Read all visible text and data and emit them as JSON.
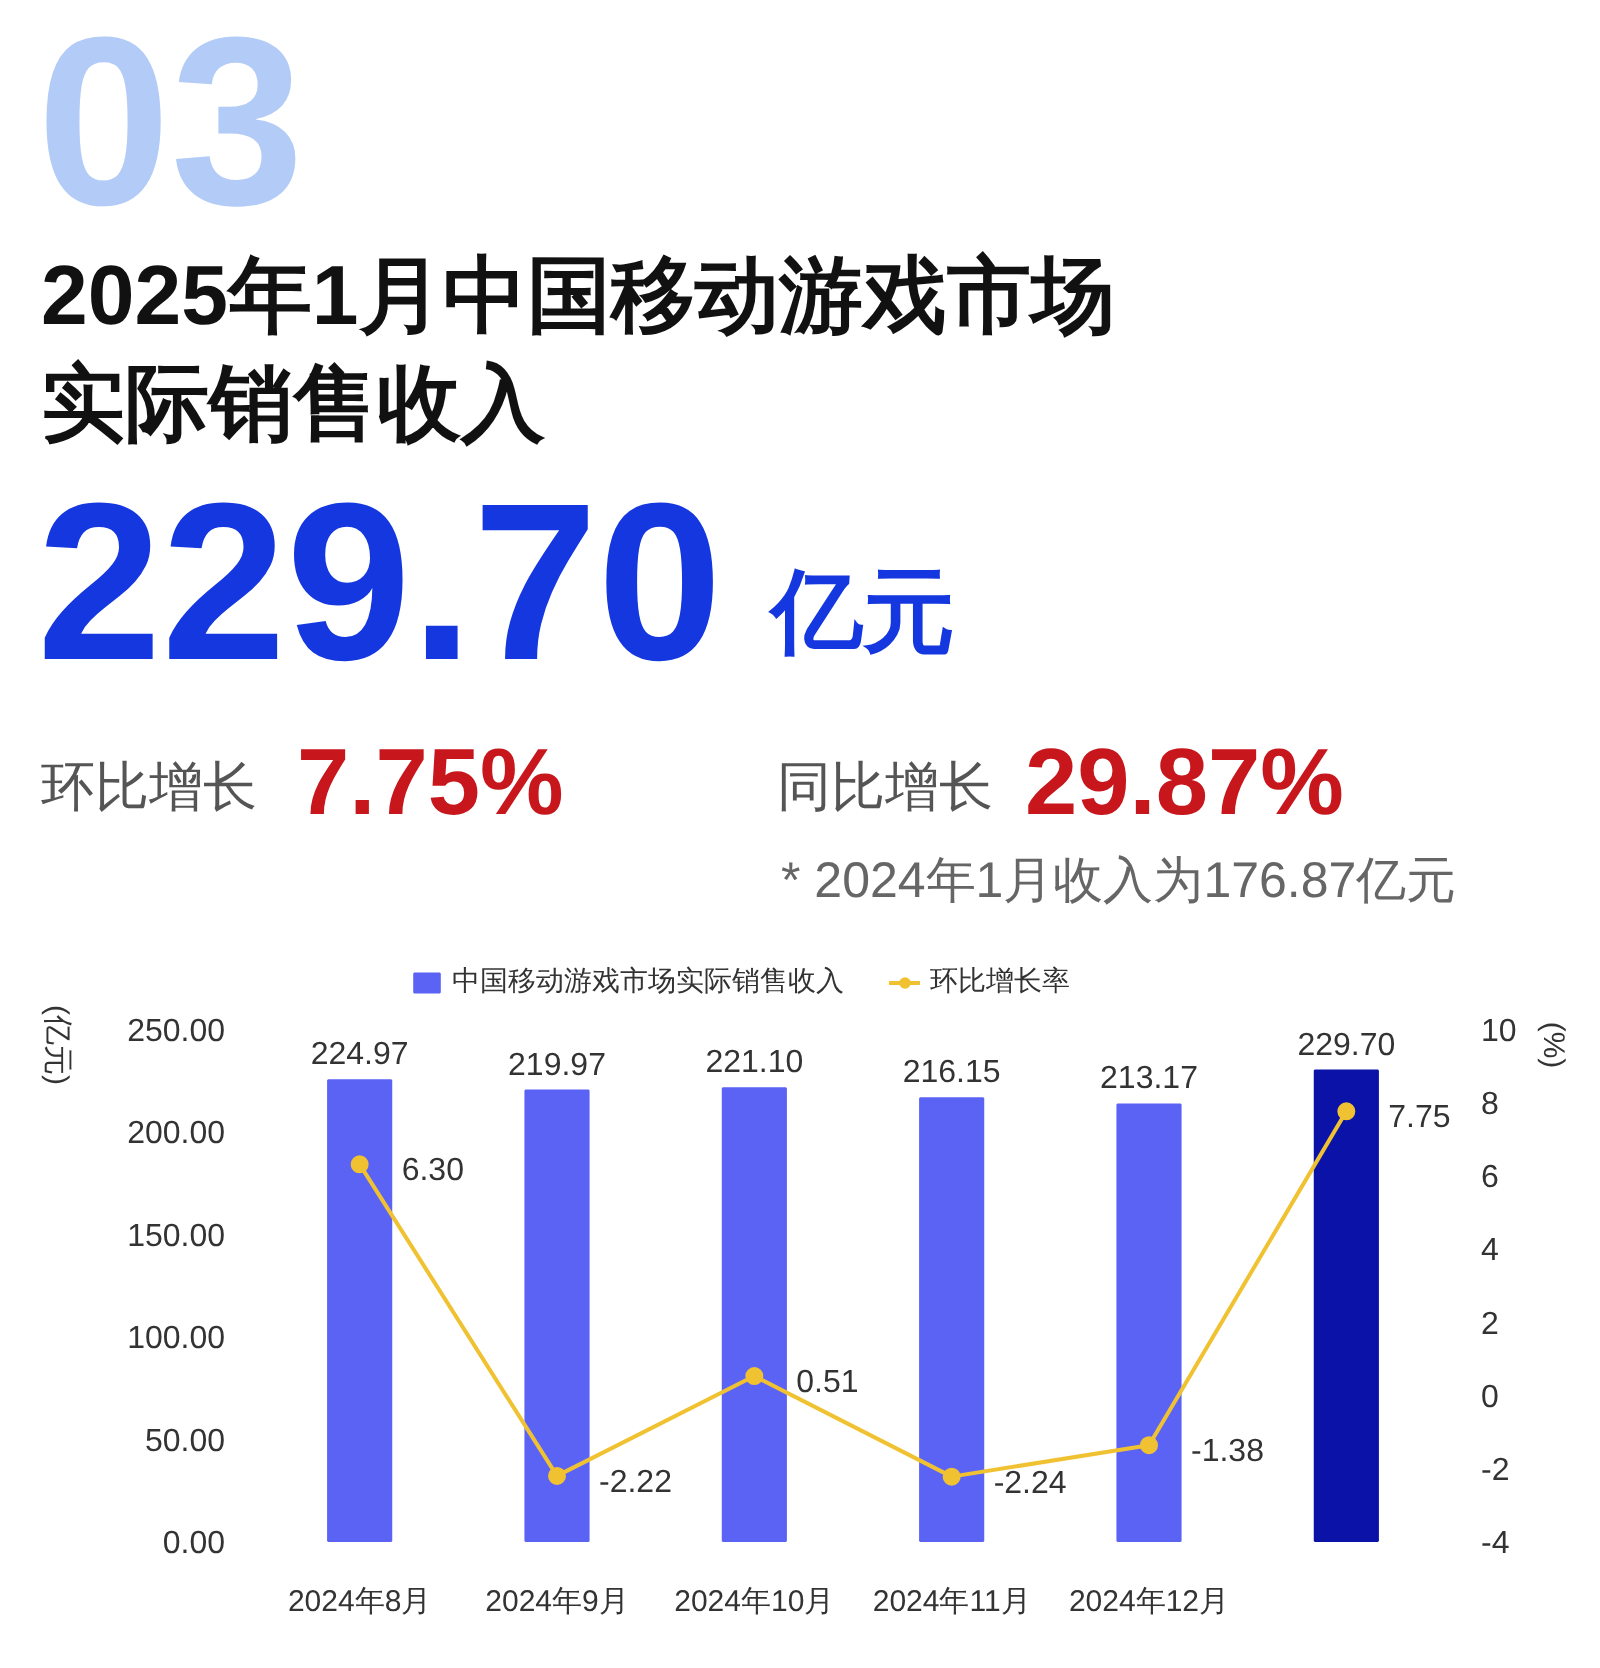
{
  "chart_data": {
    "type": "bar",
    "title": "2025年1月中国移动游戏市场实际销售收入",
    "annotations": [
      "03",
      "229.70",
      "亿元",
      "环比增长",
      "7.75%",
      "同比增长",
      "29.87%",
      "* 2024年1月收入为176.87亿元"
    ],
    "categories": [
      "2024年8月",
      "2024年9月",
      "2024年10月",
      "2024年11月",
      "2024年12月",
      null
    ],
    "series": [
      {
        "name": "中国移动游戏市场实际销售收入",
        "colors": [
          "#5b63f5",
          "#5b63f5",
          "#5b63f5",
          "#5b63f5",
          "#5b63f5",
          "#0a12a8"
        ],
        "values": [
          224.97,
          219.97,
          221.1,
          216.15,
          213.17,
          229.7
        ],
        "value_labels": [
          "224.97",
          "219.97",
          "221.10",
          "216.15",
          "213.17",
          "229.70"
        ]
      },
      {
        "name": "环比增长率",
        "type": "line",
        "axis": "y2",
        "color": "#f0c232",
        "marker": "circle",
        "values": [
          6.3,
          -2.22,
          0.51,
          -2.24,
          -1.38,
          7.75
        ],
        "value_labels": [
          "6.30",
          "-2.22",
          "0.51",
          "-2.24",
          "-1.38",
          "7.75"
        ]
      }
    ],
    "ylabel": "(亿元)",
    "y2label": "(%)",
    "ylim": [
      0,
      250
    ],
    "yticks": [
      {
        "value": 0,
        "label": "0.00"
      },
      {
        "value": 50,
        "label": "50.00"
      },
      {
        "value": 100,
        "label": "100.00"
      },
      {
        "value": 150,
        "label": "150.00"
      },
      {
        "value": 200,
        "label": "200.00"
      },
      {
        "value": 250,
        "label": "250.00"
      }
    ],
    "y2lim": [
      -4,
      10
    ],
    "y2ticks": [
      -4,
      -2,
      0,
      2,
      4,
      6,
      8,
      10
    ],
    "legend": "top",
    "grid": false
  }
}
